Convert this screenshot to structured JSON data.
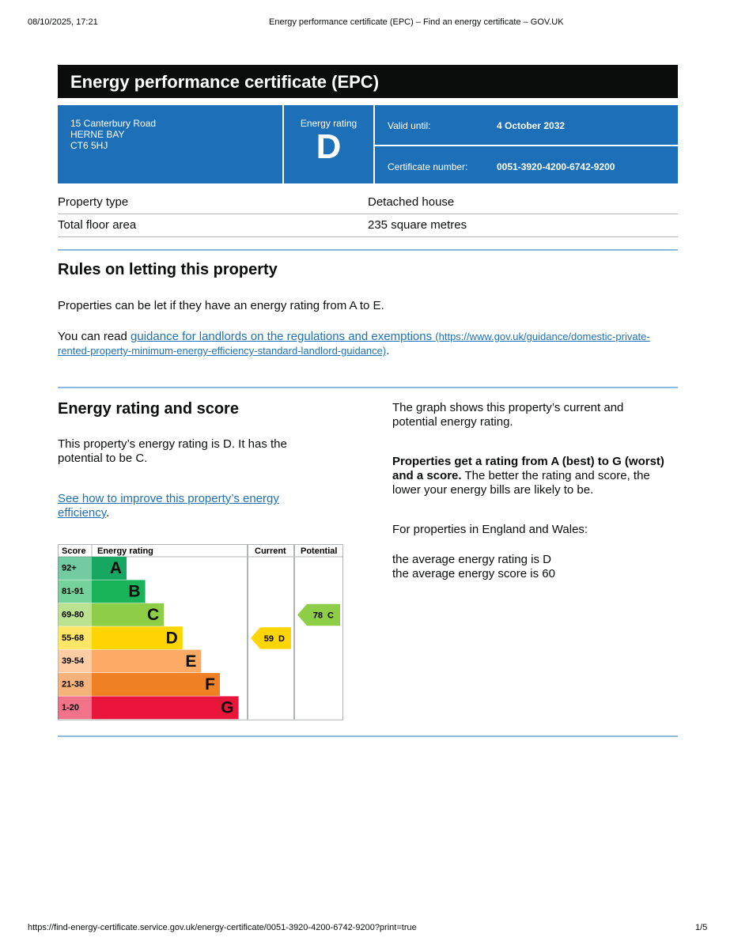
{
  "print_header": {
    "date": "08/10/2025, 17:21",
    "title": "Energy performance certificate (EPC) – Find an energy certificate – GOV.UK"
  },
  "header": {
    "title": "Energy performance certificate (EPC)"
  },
  "address": [
    "15 Canterbury Road",
    "HERNE BAY",
    "CT6 5HJ"
  ],
  "rating_box": {
    "label": "Energy rating",
    "rating": "D"
  },
  "validity": {
    "valid_label": "Valid until:",
    "valid_value": "4 October 2032",
    "cert_label": "Certificate number:",
    "cert_value": "0051-3920-4200-6742-9200"
  },
  "property": [
    [
      "Property type",
      "Detached house"
    ],
    [
      "Total floor area",
      "235 square metres"
    ]
  ],
  "rules": {
    "heading": "Rules on letting this property",
    "p1": "Properties can be let if they have an energy rating from A to E.",
    "p2_prefix": "You can read ",
    "link_text": "guidance for landlords on the regulations and exemptions",
    "link_url": "(https://www.gov.uk/guidance/domestic-private-rented-property-minimum-energy-efficiency-standard-landlord-guidance)",
    "p2_suffix": "."
  },
  "energy": {
    "heading": "Energy rating and score",
    "p1": "This property’s energy rating is D. It has the potential to be C.",
    "link_text": "See how to improve this property’s energy efficiency",
    "link_suffix": ".",
    "graph_text": "The graph shows this property’s current and potential energy rating.",
    "bold": "Properties get a rating from A (best) to G (worst) and a score.",
    "rest": " The better the rating and score, the lower your energy bills are likely to be.",
    "england": "For properties in England and Wales:",
    "avg_rating": "the average energy rating is D",
    "avg_score": "the average energy score is 60"
  },
  "epc_graph": {
    "headers": [
      "Score",
      "Energy rating",
      "Current",
      "Potential"
    ],
    "bands": [
      {
        "score": "92+",
        "letter": "A",
        "color": "#16a862"
      },
      {
        "score": "81-91",
        "letter": "B",
        "color": "#19b459"
      },
      {
        "score": "69-80",
        "letter": "C",
        "color": "#8dce46"
      },
      {
        "score": "55-68",
        "letter": "D",
        "color": "#ffd500"
      },
      {
        "score": "39-54",
        "letter": "E",
        "color": "#fcaa65"
      },
      {
        "score": "21-38",
        "letter": "F",
        "color": "#ef8023"
      },
      {
        "score": "1-20",
        "letter": "G",
        "color": "#e9153b"
      }
    ],
    "current": {
      "score": 59,
      "letter": "D"
    },
    "potential": {
      "score": 78,
      "letter": "C"
    }
  },
  "footer": {
    "url": "https://find-energy-certificate.service.gov.uk/energy-certificate/0051-3920-4200-6742-9200?print=true",
    "page": "1/5"
  }
}
